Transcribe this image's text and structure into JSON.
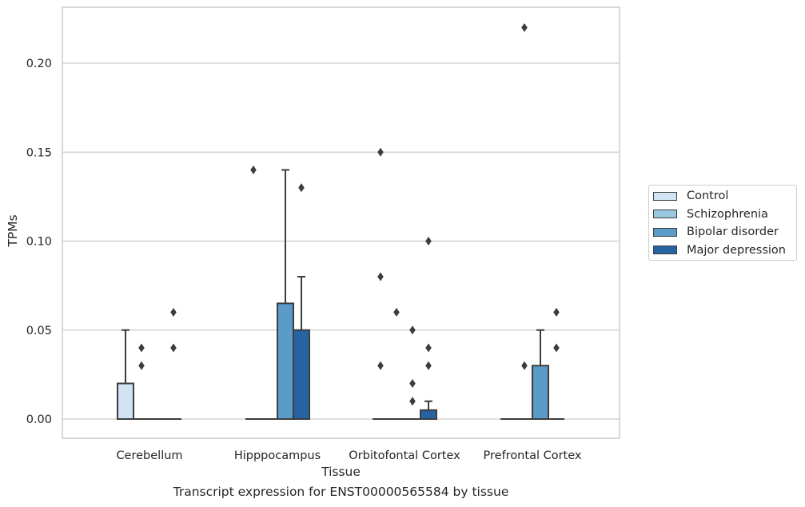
{
  "caption": "Transcript expression for ENST00000565584 by tissue",
  "chart_data": {
    "type": "box",
    "xlabel": "Tissue",
    "ylabel": "TPMs",
    "ylim": [
      -0.011,
      0.231
    ],
    "yticks": [
      "0.00",
      "0.05",
      "0.10",
      "0.15",
      "0.20"
    ],
    "grid": "horizontal",
    "legend_position": "right",
    "categories": [
      "Cerebellum",
      "Hipppocampus",
      "Orbitofontal Cortex",
      "Prefrontal Cortex"
    ],
    "series": [
      {
        "name": "Control",
        "color": "#d2e3f3",
        "boxes": [
          {
            "q1": 0,
            "median": 0,
            "q3": 0.02,
            "whisker_low": 0,
            "whisker_high": 0.05,
            "outliers": []
          },
          {
            "q1": 0,
            "median": 0,
            "q3": 0,
            "whisker_low": 0,
            "whisker_high": 0,
            "outliers": [
              0.14
            ]
          },
          {
            "q1": 0,
            "median": 0,
            "q3": 0,
            "whisker_low": 0,
            "whisker_high": 0,
            "outliers": [
              0.15,
              0.08,
              0.03
            ]
          },
          {
            "q1": 0,
            "median": 0,
            "q3": 0,
            "whisker_low": 0,
            "whisker_high": 0,
            "outliers": []
          }
        ]
      },
      {
        "name": "Schizophrenia",
        "color": "#9ac8e0",
        "boxes": [
          {
            "q1": 0,
            "median": 0,
            "q3": 0,
            "whisker_low": 0,
            "whisker_high": 0,
            "outliers": [
              0.04,
              0.03
            ]
          },
          {
            "q1": 0,
            "median": 0,
            "q3": 0,
            "whisker_low": 0,
            "whisker_high": 0,
            "outliers": []
          },
          {
            "q1": 0,
            "median": 0,
            "q3": 0,
            "whisker_low": 0,
            "whisker_high": 0,
            "outliers": [
              0.06
            ]
          },
          {
            "q1": 0,
            "median": 0,
            "q3": 0,
            "whisker_low": 0,
            "whisker_high": 0,
            "outliers": [
              0.22,
              0.03
            ]
          }
        ]
      },
      {
        "name": "Bipolar disorder",
        "color": "#5a9bc9",
        "boxes": [
          {
            "q1": 0,
            "median": 0,
            "q3": 0,
            "whisker_low": 0,
            "whisker_high": 0,
            "outliers": []
          },
          {
            "q1": 0,
            "median": 0,
            "q3": 0.065,
            "whisker_low": 0,
            "whisker_high": 0.14,
            "outliers": []
          },
          {
            "q1": 0,
            "median": 0,
            "q3": 0,
            "whisker_low": 0,
            "whisker_high": 0,
            "outliers": [
              0.05,
              0.02,
              0.01
            ]
          },
          {
            "q1": 0,
            "median": 0,
            "q3": 0.03,
            "whisker_low": 0,
            "whisker_high": 0.05,
            "outliers": []
          }
        ]
      },
      {
        "name": "Major depression",
        "color": "#2563a3",
        "boxes": [
          {
            "q1": 0,
            "median": 0,
            "q3": 0,
            "whisker_low": 0,
            "whisker_high": 0,
            "outliers": [
              0.06,
              0.04
            ]
          },
          {
            "q1": 0,
            "median": 0,
            "q3": 0.05,
            "whisker_low": 0,
            "whisker_high": 0.08,
            "outliers": [
              0.13
            ]
          },
          {
            "q1": 0,
            "median": 0,
            "q3": 0.005,
            "whisker_low": 0,
            "whisker_high": 0.01,
            "outliers": [
              0.1,
              0.04,
              0.03
            ]
          },
          {
            "q1": 0,
            "median": 0,
            "q3": 0,
            "whisker_low": 0,
            "whisker_high": 0,
            "outliers": [
              0.06,
              0.04
            ]
          }
        ]
      }
    ]
  }
}
